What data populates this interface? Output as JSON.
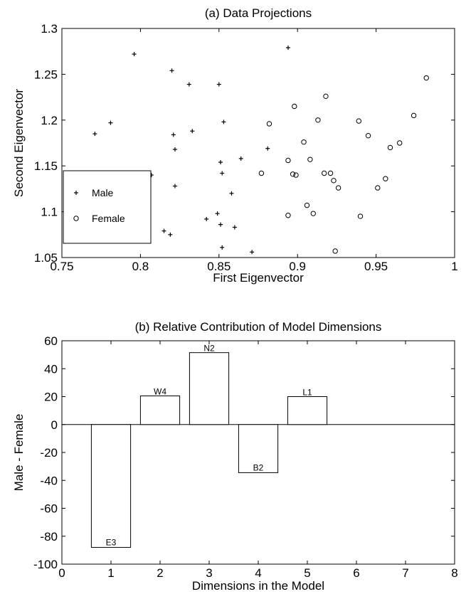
{
  "chart_data": [
    {
      "type": "scatter",
      "title": "(a) Data Projections",
      "xlabel": "First Eigenvector",
      "ylabel": "Second Eigenvector",
      "xlim": [
        0.75,
        1
      ],
      "ylim": [
        1.05,
        1.3
      ],
      "xticks": [
        "0.75",
        "0.8",
        "0.85",
        "0.9",
        "0.95",
        "1"
      ],
      "yticks": [
        "1.05",
        "1.1",
        "1.15",
        "1.2",
        "1.25",
        "1.3"
      ],
      "legend": {
        "placement": "lower-left"
      },
      "series": [
        {
          "name": "Male",
          "marker": "plus",
          "x": [
            0.771,
            0.781,
            0.796,
            0.807,
            0.815,
            0.819,
            0.82,
            0.821,
            0.822,
            0.822,
            0.831,
            0.833,
            0.842,
            0.849,
            0.85,
            0.851,
            0.851,
            0.852,
            0.852,
            0.853,
            0.858,
            0.86,
            0.864,
            0.871,
            0.881,
            0.894
          ],
          "y": [
            1.185,
            1.197,
            1.272,
            1.14,
            1.079,
            1.075,
            1.254,
            1.184,
            1.168,
            1.128,
            1.239,
            1.188,
            1.092,
            1.098,
            1.239,
            1.154,
            1.086,
            1.142,
            1.061,
            1.198,
            1.12,
            1.083,
            1.158,
            1.056,
            1.169,
            1.279
          ]
        },
        {
          "name": "Female",
          "marker": "circle",
          "x": [
            0.877,
            0.882,
            0.894,
            0.894,
            0.897,
            0.898,
            0.899,
            0.904,
            0.906,
            0.908,
            0.91,
            0.913,
            0.917,
            0.918,
            0.921,
            0.923,
            0.924,
            0.926,
            0.939,
            0.94,
            0.945,
            0.951,
            0.956,
            0.959,
            0.965,
            0.974,
            0.982
          ],
          "y": [
            1.142,
            1.196,
            1.156,
            1.096,
            1.141,
            1.215,
            1.14,
            1.176,
            1.107,
            1.157,
            1.098,
            1.2,
            1.142,
            1.226,
            1.142,
            1.134,
            1.057,
            1.126,
            1.199,
            1.095,
            1.183,
            1.126,
            1.136,
            1.17,
            1.175,
            1.205,
            1.246
          ]
        }
      ]
    },
    {
      "type": "bar",
      "title": "(b) Relative Contribution of Model Dimensions",
      "xlabel": "Dimensions in the Model",
      "ylabel": "Male - Female",
      "xlim": [
        0,
        8
      ],
      "ylim": [
        -100,
        60
      ],
      "xticks": [
        "0",
        "1",
        "2",
        "3",
        "4",
        "5",
        "6",
        "7",
        "8"
      ],
      "yticks": [
        "60",
        "40",
        "20",
        "0",
        "-20",
        "-40",
        "-60",
        "-80",
        "-100"
      ],
      "bar_width": 0.8,
      "bars": [
        {
          "x": 1,
          "value": -88,
          "label": "E3"
        },
        {
          "x": 2,
          "value": 20.5,
          "label": "W4"
        },
        {
          "x": 3,
          "value": 51.5,
          "label": "N2"
        },
        {
          "x": 4,
          "value": -34.5,
          "label": "B2"
        },
        {
          "x": 5,
          "value": 20,
          "label": "L1"
        }
      ]
    }
  ]
}
